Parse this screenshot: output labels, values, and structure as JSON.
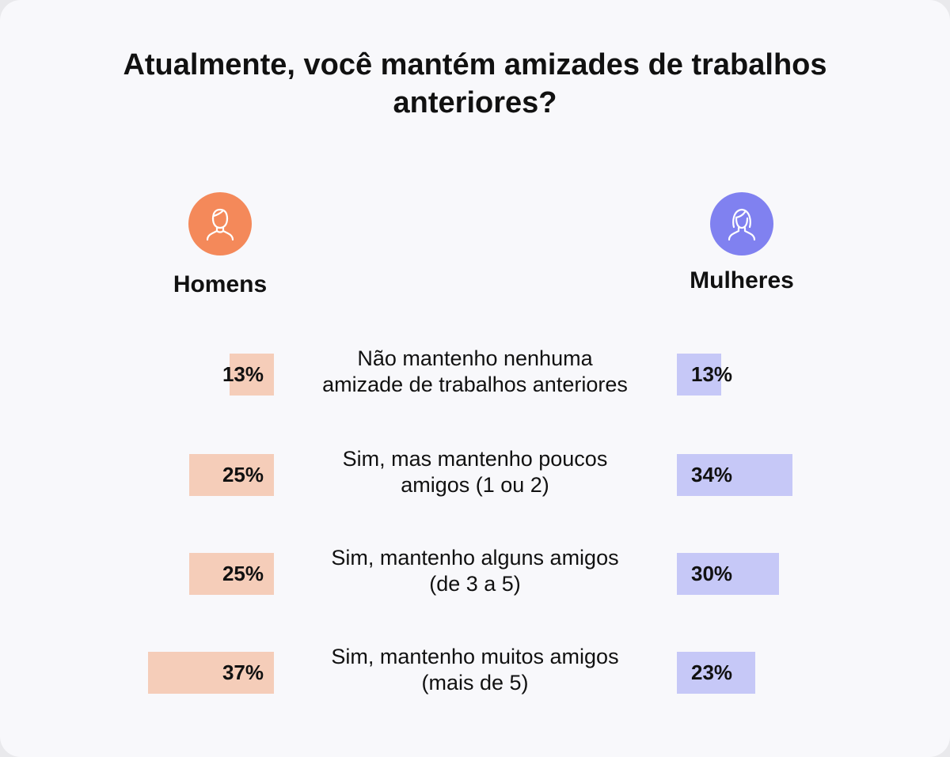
{
  "title": "Atualmente, você mantém amizades de trabalhos anteriores?",
  "groups": {
    "men": {
      "label": "Homens",
      "icon": "man-user-icon",
      "color": "#f4895a",
      "bar_color": "#f5cdb9"
    },
    "women": {
      "label": "Mulheres",
      "icon": "woman-user-icon",
      "color": "#8081f0",
      "bar_color": "#c6c8f7"
    }
  },
  "chart_data": {
    "type": "bar",
    "categories": [
      "Não mantenho nenhuma amizade de trabalhos anteriores",
      "Sim, mas mantenho poucos amigos (1 ou 2)",
      "Sim, mantenho alguns amigos (de 3 a 5)",
      "Sim,   mantenho muitos amigos (mais de 5)"
    ],
    "series": [
      {
        "name": "Homens",
        "values": [
          13,
          25,
          25,
          37
        ],
        "labels": [
          "13%",
          "25%",
          "25%",
          "37%"
        ]
      },
      {
        "name": "Mulheres",
        "values": [
          13,
          34,
          30,
          23
        ],
        "labels": [
          "13%",
          "34%",
          "30%",
          "23%"
        ]
      }
    ],
    "title": "Atualmente, você mantém amizades de trabalhos anteriores?",
    "xlabel": "",
    "ylabel": "",
    "unit": "%"
  },
  "rows": [
    {
      "answer": "Não mantenho nenhuma\namizade de trabalhos anteriores",
      "men": "13%",
      "women": "13%"
    },
    {
      "answer": "Sim, mas mantenho poucos\namigos (1 ou 2)",
      "men": "25%",
      "women": "34%"
    },
    {
      "answer": "Sim, mantenho alguns amigos\n(de 3 a 5)",
      "men": "25%",
      "women": "30%"
    },
    {
      "answer": "Sim,   mantenho muitos amigos\n(mais de 5)",
      "men": "37%",
      "women": "23%"
    }
  ]
}
